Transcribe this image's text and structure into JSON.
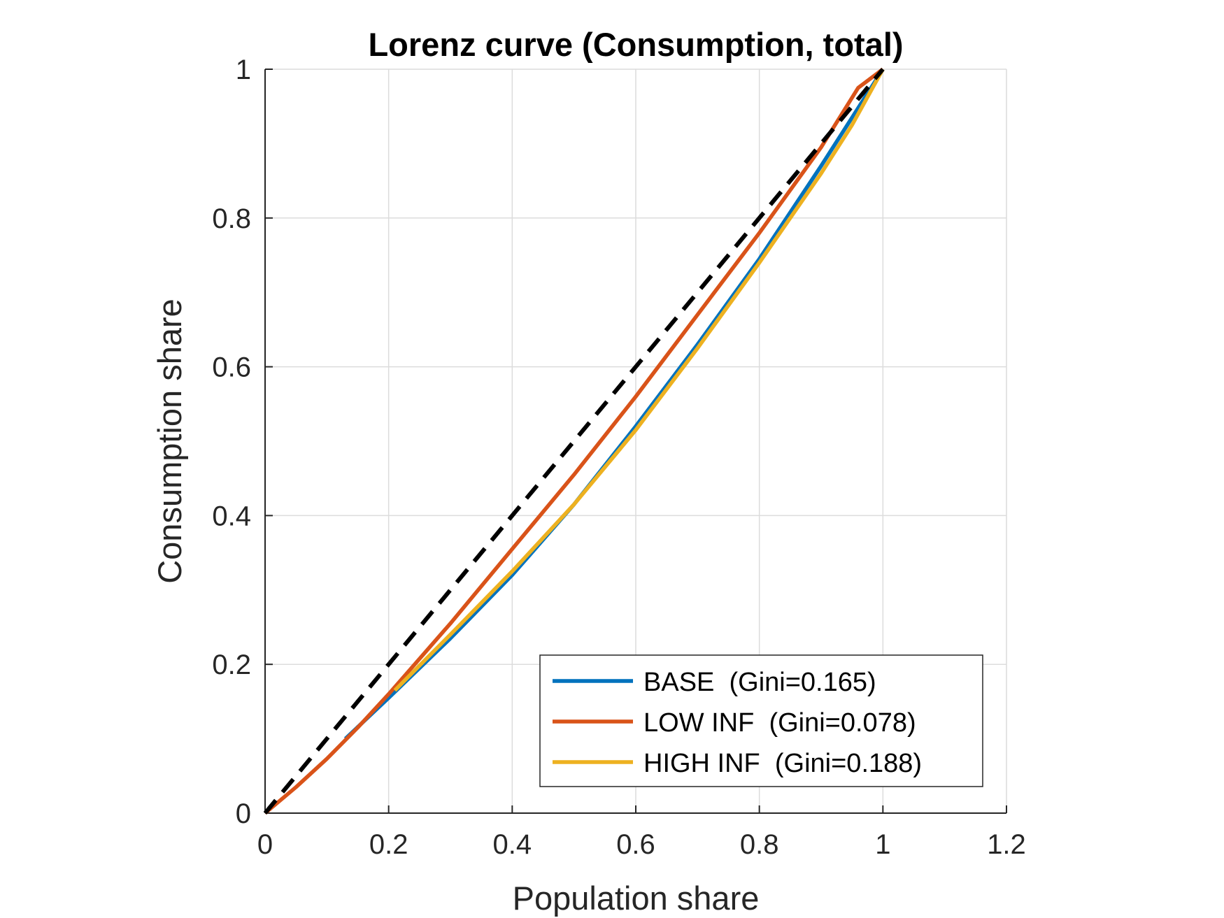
{
  "chart_data": {
    "type": "line",
    "title": "Lorenz curve (Consumption, total)",
    "xlabel": "Population share",
    "ylabel": "Consumption share",
    "xlim": [
      0,
      1.2
    ],
    "ylim": [
      0,
      1
    ],
    "xticks": [
      0,
      0.2,
      0.4,
      0.6,
      0.8,
      1,
      1.2
    ],
    "xtick_labels": [
      "0",
      "0.2",
      "0.4",
      "0.6",
      "0.8",
      "1",
      "1.2"
    ],
    "yticks": [
      0,
      0.2,
      0.4,
      0.6,
      0.8,
      1
    ],
    "ytick_labels": [
      "0",
      "0.2",
      "0.4",
      "0.6",
      "0.8",
      "1"
    ],
    "grid": true,
    "legend_position": "bottom-right",
    "equality_line": {
      "style": "dashed",
      "color": "#000000",
      "x": [
        0,
        1
      ],
      "y": [
        0,
        1
      ]
    },
    "series": [
      {
        "name": "BASE  (Gini=0.165)",
        "color": "#0072BD",
        "x": [
          0.13,
          0.2,
          0.3,
          0.4,
          0.5,
          0.6,
          0.7,
          0.8,
          0.9,
          0.95,
          1.0
        ],
        "y": [
          0.1,
          0.155,
          0.235,
          0.32,
          0.415,
          0.52,
          0.63,
          0.745,
          0.87,
          0.935,
          1.0
        ]
      },
      {
        "name": "LOW INF  (Gini=0.078)",
        "color": "#D95319",
        "x": [
          0.0,
          0.05,
          0.1,
          0.15,
          0.2,
          0.3,
          0.4,
          0.5,
          0.6,
          0.7,
          0.8,
          0.9,
          0.96,
          1.0
        ],
        "y": [
          0.0,
          0.035,
          0.073,
          0.115,
          0.16,
          0.255,
          0.355,
          0.455,
          0.56,
          0.67,
          0.78,
          0.895,
          0.975,
          1.0
        ]
      },
      {
        "name": "HIGH INF  (Gini=0.188)",
        "color": "#EDB120",
        "x": [
          0.21,
          0.3,
          0.4,
          0.5,
          0.6,
          0.7,
          0.8,
          0.9,
          0.95,
          1.0
        ],
        "y": [
          0.165,
          0.24,
          0.325,
          0.415,
          0.515,
          0.625,
          0.74,
          0.86,
          0.925,
          1.0
        ]
      }
    ]
  }
}
